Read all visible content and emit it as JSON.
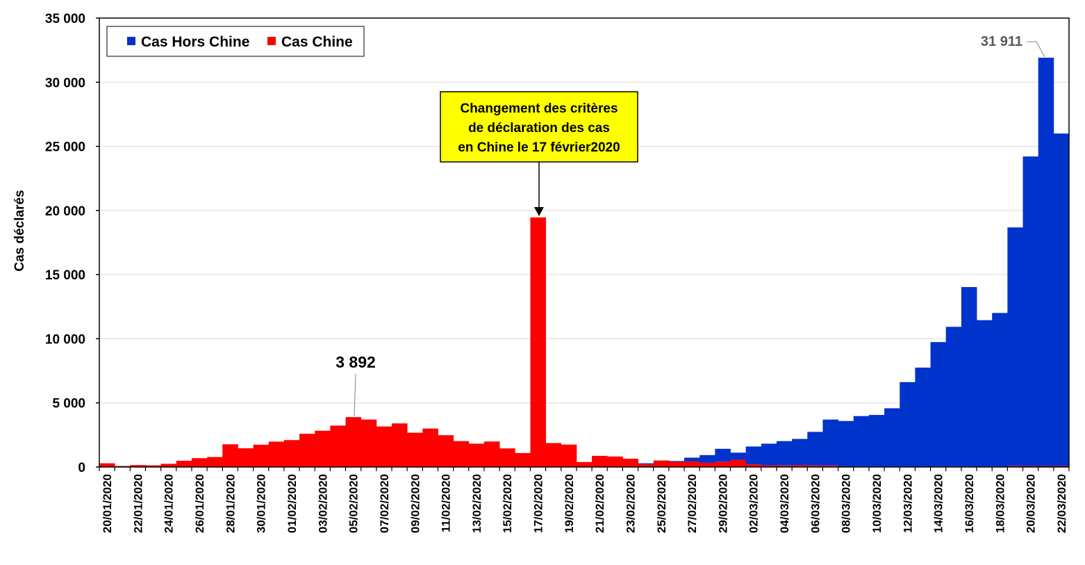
{
  "chart_data": {
    "type": "bar",
    "stacked": true,
    "ylabel": "Cas déclarés",
    "ylim": [
      0,
      35000
    ],
    "ytick_step": 5000,
    "grid": true,
    "legend_position": "top-left",
    "categories": [
      "20/01/2020",
      "21/01/2020",
      "22/01/2020",
      "23/01/2020",
      "24/01/2020",
      "25/01/2020",
      "26/01/2020",
      "27/01/2020",
      "28/01/2020",
      "29/01/2020",
      "30/01/2020",
      "31/01/2020",
      "01/02/2020",
      "02/02/2020",
      "03/02/2020",
      "04/02/2020",
      "05/02/2020",
      "06/02/2020",
      "07/02/2020",
      "08/02/2020",
      "09/02/2020",
      "10/02/2020",
      "11/02/2020",
      "12/02/2020",
      "13/02/2020",
      "14/02/2020",
      "15/02/2020",
      "16/02/2020",
      "17/02/2020",
      "18/02/2020",
      "19/02/2020",
      "20/02/2020",
      "21/02/2020",
      "22/02/2020",
      "23/02/2020",
      "24/02/2020",
      "25/02/2020",
      "26/02/2020",
      "27/02/2020",
      "28/02/2020",
      "29/02/2020",
      "01/03/2020",
      "02/03/2020",
      "03/03/2020",
      "04/03/2020",
      "05/03/2020",
      "06/03/2020",
      "07/03/2020",
      "08/03/2020",
      "09/03/2020",
      "10/03/2020",
      "11/03/2020",
      "12/03/2020",
      "13/03/2020",
      "14/03/2020",
      "15/03/2020",
      "16/03/2020",
      "17/03/2020",
      "18/03/2020",
      "19/03/2020",
      "20/03/2020",
      "21/03/2020",
      "22/03/2020"
    ],
    "xtick_labels": [
      "20/01/2020",
      "",
      "22/01/2020",
      "",
      "24/01/2020",
      "",
      "26/01/2020",
      "",
      "28/01/2020",
      "",
      "30/01/2020",
      "",
      "01/02/2020",
      "",
      "03/02/2020",
      "",
      "05/02/2020",
      "",
      "07/02/2020",
      "",
      "09/02/2020",
      "",
      "11/02/2020",
      "",
      "13/02/2020",
      "",
      "15/02/2020",
      "",
      "17/02/2020",
      "",
      "19/02/2020",
      "",
      "21/02/2020",
      "",
      "23/02/2020",
      "",
      "25/02/2020",
      "",
      "27/02/2020",
      "",
      "29/02/2020",
      "",
      "02/03/2020",
      "",
      "04/03/2020",
      "",
      "06/03/2020",
      "",
      "08/03/2020",
      "",
      "10/03/2020",
      "",
      "12/03/2020",
      "",
      "14/03/2020",
      "",
      "16/03/2020",
      "",
      "18/03/2020",
      "",
      "20/03/2020",
      "",
      "22/03/2020"
    ],
    "series": [
      {
        "name": "Cas Chine",
        "color": "#ff0000",
        "values": [
          290,
          80,
          150,
          130,
          250,
          490,
          690,
          780,
          1770,
          1460,
          1740,
          1980,
          2100,
          2590,
          2830,
          3230,
          3892,
          3700,
          3160,
          3400,
          2670,
          3000,
          2480,
          2020,
          1820,
          1990,
          1450,
          1090,
          19460,
          1870,
          1750,
          390,
          870,
          820,
          650,
          210,
          510,
          410,
          430,
          330,
          420,
          570,
          210,
          130,
          120,
          140,
          120,
          120,
          50,
          40,
          30,
          30,
          30,
          20,
          40,
          40,
          40,
          40,
          40,
          90,
          80,
          80,
          80
        ]
      },
      {
        "name": "Cas Hors Chine",
        "color": "#0033cc",
        "values": [
          0,
          0,
          0,
          0,
          0,
          0,
          0,
          0,
          0,
          0,
          0,
          0,
          0,
          0,
          0,
          0,
          0,
          0,
          0,
          0,
          0,
          0,
          0,
          0,
          0,
          0,
          0,
          0,
          0,
          0,
          0,
          0,
          0,
          0,
          0,
          80,
          0,
          60,
          300,
          600,
          1000,
          550,
          1390,
          1690,
          1900,
          2050,
          2620,
          3580,
          3540,
          3930,
          4030,
          4550,
          6590,
          7730,
          9700,
          10890,
          13990,
          11410,
          11970,
          18590,
          24130,
          31831,
          25920
        ]
      }
    ],
    "annotations": {
      "callout": [
        "Changement des critères",
        "de déclaration des cas",
        "en Chine le 17 février2020"
      ],
      "peak_label": "3 892",
      "max_label": "31 911"
    }
  }
}
